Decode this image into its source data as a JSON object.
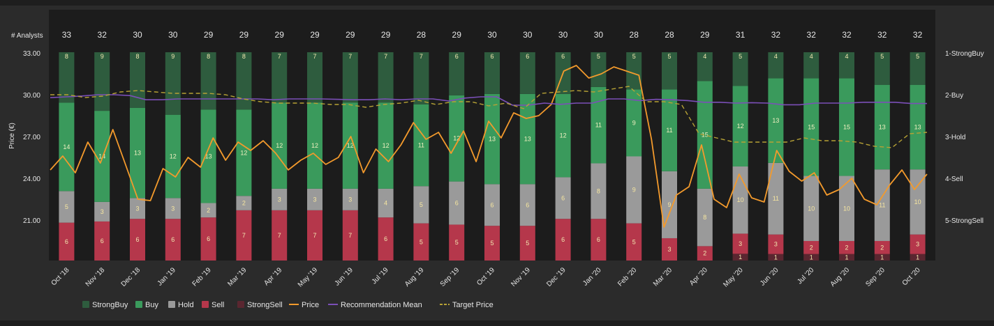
{
  "chart_data": {
    "type": "bar",
    "title": "",
    "analysts_label": "# Analysts",
    "ylabel": "Price (€)",
    "ylim": [
      18.5,
      33
    ],
    "yticks": [
      "33.00",
      "30.00",
      "27.00",
      "24.00",
      "21.00"
    ],
    "ytick_values": [
      33,
      30,
      27,
      24,
      21
    ],
    "right_ticks": [
      "1-StrongBuy",
      "2-Buy",
      "3-Hold",
      "4-Sell",
      "5-StrongSell"
    ],
    "categories": [
      "Oct '18",
      "Nov '18",
      "Dec '18",
      "Jan '19",
      "Feb '19",
      "Mar '19",
      "Apr '19",
      "May '19",
      "Jun '19",
      "Jul '19",
      "Aug '19",
      "Sep '19",
      "Oct '19",
      "Nov '19",
      "Dec '19",
      "Jan '20",
      "Feb '20",
      "Mar '20",
      "Apr '20",
      "May '20",
      "Jun '20",
      "Jul '20",
      "Aug '20",
      "Sep '20",
      "Oct '20"
    ],
    "analyst_counts": [
      33,
      32,
      30,
      30,
      29,
      29,
      29,
      29,
      29,
      29,
      28,
      29,
      30,
      30,
      30,
      30,
      28,
      28,
      29,
      31,
      32,
      32,
      32,
      32,
      32
    ],
    "series": [
      {
        "name": "StrongBuy",
        "color": "#2e5c3e",
        "values": [
          8,
          9,
          8,
          9,
          8,
          8,
          7,
          7,
          7,
          7,
          7,
          6,
          6,
          6,
          6,
          5,
          5,
          5,
          4,
          5,
          4,
          4,
          4,
          5,
          5
        ]
      },
      {
        "name": "Buy",
        "color": "#3a9a5c",
        "values": [
          14,
          14,
          13,
          12,
          13,
          12,
          12,
          12,
          12,
          12,
          11,
          12,
          13,
          13,
          12,
          11,
          9,
          11,
          15,
          12,
          13,
          15,
          15,
          13,
          13
        ]
      },
      {
        "name": "Hold",
        "color": "#9a9a9a",
        "values": [
          5,
          3,
          3,
          3,
          2,
          2,
          3,
          3,
          3,
          4,
          5,
          6,
          6,
          6,
          6,
          8,
          9,
          9,
          8,
          10,
          11,
          10,
          10,
          11,
          10
        ]
      },
      {
        "name": "Sell",
        "color": "#b5374b",
        "values": [
          6,
          6,
          6,
          6,
          6,
          7,
          7,
          7,
          7,
          6,
          5,
          5,
          5,
          5,
          6,
          6,
          5,
          3,
          2,
          3,
          3,
          2,
          2,
          2,
          3
        ]
      },
      {
        "name": "StrongSell",
        "color": "#5a2630",
        "values": [
          0,
          0,
          0,
          0,
          0,
          0,
          0,
          0,
          0,
          0,
          0,
          0,
          0,
          0,
          0,
          0,
          0,
          0,
          0,
          1,
          1,
          1,
          1,
          1,
          1
        ]
      }
    ],
    "lines": [
      {
        "name": "Price",
        "color": "#f39a2c",
        "unit": "price",
        "values": [
          24.6,
          25.6,
          24.4,
          26.6,
          25.1,
          27.5,
          25.0,
          22.5,
          22.4,
          24.7,
          24.1,
          25.5,
          24.8,
          26.9,
          25.3,
          26.6,
          26.0,
          26.7,
          25.8,
          24.6,
          25.3,
          25.8,
          25.0,
          25.5,
          27.0,
          24.4,
          26.1,
          25.2,
          26.4,
          28.0,
          26.8,
          27.3,
          25.8,
          27.4,
          25.2,
          28.1,
          26.9,
          28.7,
          28.3,
          28.5,
          29.3,
          31.7,
          32.1,
          31.2,
          31.5,
          32.0,
          31.7,
          31.4,
          26.8,
          20.5,
          22.8,
          23.4,
          26.4,
          22.5,
          21.9,
          24.3,
          22.6,
          22.3,
          26.0,
          24.5,
          23.8,
          24.4,
          22.8,
          23.2,
          24.0,
          22.5,
          22.1,
          23.5,
          24.6,
          23.2,
          24.3
        ]
      },
      {
        "name": "Recommendation Mean",
        "color": "#7b4fb8",
        "unit": "rating",
        "values": [
          2.07,
          2.05,
          2.03,
          2.0,
          2.0,
          2.02,
          2.12,
          2.12,
          2.1,
          2.1,
          2.1,
          2.1,
          2.1,
          2.1,
          2.12,
          2.1,
          2.1,
          2.1,
          2.11,
          2.12,
          2.12,
          2.1,
          2.12,
          2.1,
          2.1,
          2.15,
          2.08,
          2.05,
          2.05,
          2.25,
          2.25,
          2.2,
          2.23,
          2.2,
          2.2,
          2.1,
          2.1,
          2.14,
          2.11,
          2.12,
          2.14,
          2.18,
          2.18,
          2.2,
          2.19,
          2.2,
          2.24,
          2.24,
          2.2,
          2.2,
          2.2,
          2.18,
          2.18,
          2.18,
          2.21,
          2.21
        ]
      },
      {
        "name": "Target Price",
        "color": "#b7a235",
        "unit": "price",
        "values": [
          30.0,
          30.0,
          29.8,
          29.9,
          30.2,
          30.3,
          30.2,
          30.1,
          30.1,
          30.1,
          30.0,
          29.7,
          29.5,
          29.4,
          29.4,
          29.4,
          29.3,
          29.3,
          29.1,
          29.3,
          29.4,
          29.6,
          29.3,
          29.5,
          29.5,
          29.2,
          29.4,
          29.0,
          30.1,
          30.2,
          30.3,
          30.2,
          30.4,
          30.6,
          29.5,
          29.5,
          29.3,
          27.2,
          26.9,
          26.6,
          26.6,
          26.6,
          26.6,
          26.9,
          26.7,
          26.7,
          26.6,
          26.3,
          26.2,
          27.2,
          27.3
        ]
      }
    ],
    "legend": [
      "StrongBuy",
      "Buy",
      "Hold",
      "Sell",
      "StrongSell",
      "Price",
      "Recommendation Mean",
      "Target Price"
    ],
    "legend_placement": "bottom",
    "grid": false,
    "colors": {
      "background": "#2b2b2b",
      "plot_background": "#1c1c1c",
      "text": "#e6e6e6"
    }
  }
}
